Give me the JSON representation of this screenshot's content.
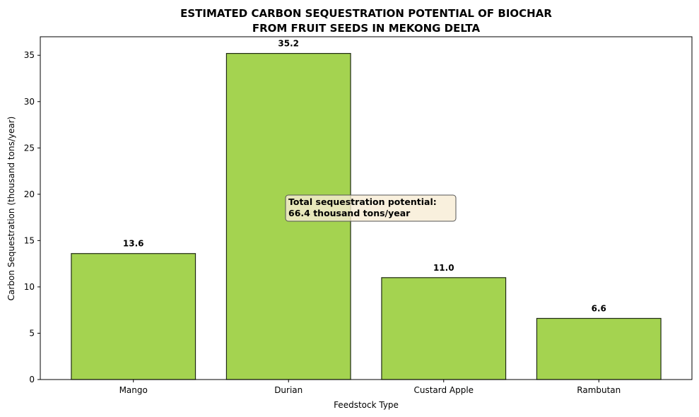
{
  "chart_data": {
    "type": "bar",
    "title_lines": [
      "ESTIMATED CARBON SEQUESTRATION POTENTIAL OF BIOCHAR",
      "FROM FRUIT SEEDS IN MEKONG DELTA"
    ],
    "xlabel": "Feedstock Type",
    "ylabel": "Carbon Sequestration (thousand tons/year)",
    "categories": [
      "Mango",
      "Durian",
      "Custard Apple",
      "Rambutan"
    ],
    "values": [
      13.6,
      35.2,
      11.0,
      6.6
    ],
    "data_labels": [
      "13.6",
      "35.2",
      "11.0",
      "6.6"
    ],
    "ylim": [
      0,
      37
    ],
    "yticks": [
      0,
      5,
      10,
      15,
      20,
      25,
      30,
      35
    ],
    "grid": false,
    "bar_color": "#a4d350",
    "bar_edge_color": "#1f2a14",
    "annotation": {
      "lines": [
        "Total sequestration potential:",
        "66.4 thousand tons/year"
      ],
      "box_color": "#f7ecd5"
    }
  }
}
